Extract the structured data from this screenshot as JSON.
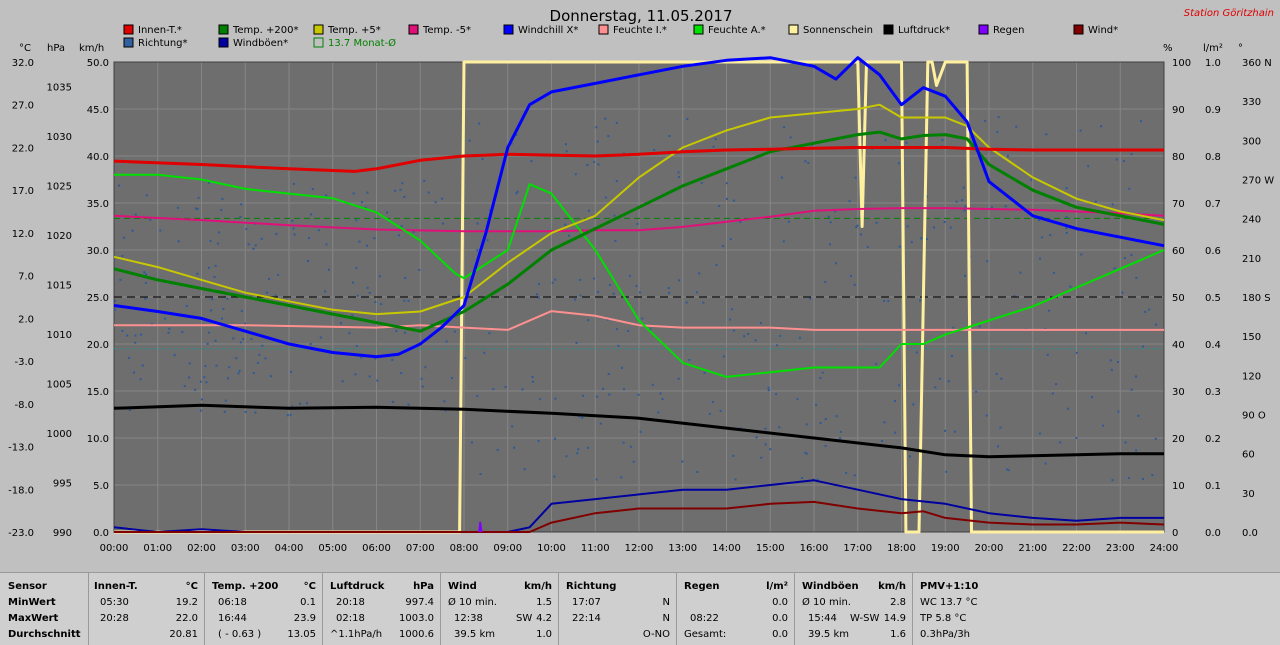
{
  "title": "Donnerstag, 11.05.2017",
  "station": "Station Göritzhain",
  "unit_labels": {
    "c": "°C",
    "hpa": "hPa",
    "kmh": "km/h",
    "pct": "%",
    "rain": "l/m²",
    "deg": "°"
  },
  "legend": [
    {
      "label": "Innen-T.*",
      "color": "#e00000"
    },
    {
      "label": "Temp. +200*",
      "color": "#008000"
    },
    {
      "label": "Temp. +5*",
      "color": "#c8c800"
    },
    {
      "label": "Temp. -5*",
      "color": "#e0107a"
    },
    {
      "label": "Windchill X*",
      "color": "#0000ff"
    },
    {
      "label": "Feuchte I.*",
      "color": "#ff9090"
    },
    {
      "label": "Feuchte A.*",
      "color": "#00e000"
    },
    {
      "label": "Sonnenschein",
      "color": "#fff0a0"
    },
    {
      "label": "Luftdruck*",
      "color": "#000000"
    },
    {
      "label": "Regen",
      "color": "#8000ff"
    },
    {
      "label": "Wind*",
      "color": "#800000"
    },
    {
      "label": "Richtung*",
      "color": "#3060a0"
    },
    {
      "label": "Windböen*",
      "color": "#0000a0"
    },
    {
      "label": "13.7 Monat-Ø",
      "color": "#008000"
    }
  ],
  "chart_data": {
    "type": "line",
    "title": "Donnerstag, 11.05.2017",
    "x_ticks": [
      "00:00",
      "01:00",
      "02:00",
      "03:00",
      "04:00",
      "05:00",
      "06:00",
      "07:00",
      "08:00",
      "09:00",
      "10:00",
      "11:00",
      "12:00",
      "13:00",
      "14:00",
      "15:00",
      "16:00",
      "17:00",
      "18:00",
      "19:00",
      "20:00",
      "21:00",
      "22:00",
      "23:00",
      "24:00"
    ],
    "axes": {
      "temp_c": {
        "ticks": [
          "32.0",
          "27.0",
          "22.0",
          "17.0",
          "12.0",
          "7.0",
          "2.0",
          "-3.0",
          "-8.0",
          "-13.0",
          "-18.0",
          "-23.0"
        ],
        "range": [
          -23,
          32
        ]
      },
      "pressure_hpa": {
        "ticks": [
          "1035",
          "1030",
          "1025",
          "1020",
          "1015",
          "1010",
          "1005",
          "1000",
          "995",
          "990"
        ],
        "range": [
          990,
          1037.5
        ]
      },
      "wind_kmh": {
        "ticks": [
          "50.0",
          "45.0",
          "40.0",
          "35.0",
          "30.0",
          "25.0",
          "20.0",
          "15.0",
          "10.0",
          "5.0",
          "0.0"
        ],
        "range": [
          0,
          50
        ]
      },
      "humidity_pct": {
        "ticks": [
          "100",
          "90",
          "80",
          "70",
          "60",
          "50",
          "40",
          "30",
          "20",
          "10",
          "0"
        ],
        "range": [
          0,
          100
        ]
      },
      "rain_lm2": {
        "ticks": [
          "1.0",
          "0.9",
          "0.8",
          "0.7",
          "0.6",
          "0.5",
          "0.4",
          "0.3",
          "0.2",
          "0.1",
          "0.0"
        ],
        "range": [
          0,
          1
        ]
      },
      "direction_deg": {
        "ticks": [
          "360 N",
          "330",
          "300",
          "270 W",
          "240",
          "210",
          "180 S",
          "150",
          "120",
          "90 O",
          "60",
          "30",
          "0.0"
        ],
        "range": [
          0,
          360
        ]
      }
    },
    "series": [
      {
        "name": "Innen-T.*",
        "axis": "temp_c",
        "x": [
          0,
          2,
          4,
          5.5,
          6,
          7,
          8,
          9,
          10,
          11,
          12,
          13,
          14,
          15,
          16,
          17,
          18,
          19,
          20,
          21,
          22,
          23,
          24
        ],
        "values": [
          20.4,
          20.0,
          19.5,
          19.2,
          19.5,
          20.5,
          21.0,
          21.2,
          21.1,
          21.0,
          21.2,
          21.5,
          21.7,
          21.8,
          21.9,
          22.0,
          22.0,
          22.0,
          21.8,
          21.7,
          21.7,
          21.7,
          21.7
        ]
      },
      {
        "name": "Temp. +200*",
        "axis": "temp_c",
        "x": [
          0,
          1,
          2,
          3,
          4,
          5,
          6,
          7,
          8,
          9,
          10,
          11,
          12,
          13,
          14,
          15,
          16,
          16.5,
          17,
          17.5,
          18,
          18.5,
          19,
          19.5,
          20,
          21,
          22,
          23,
          24
        ],
        "values": [
          7.8,
          6.5,
          5.5,
          4.5,
          3.5,
          2.5,
          1.5,
          0.5,
          2.8,
          6.0,
          10.0,
          12.5,
          15.0,
          17.5,
          19.5,
          21.5,
          22.5,
          23.0,
          23.5,
          23.8,
          23.0,
          23.4,
          23.5,
          23.0,
          20.0,
          17.0,
          15.0,
          14.0,
          13.0
        ]
      },
      {
        "name": "Temp. +5*",
        "axis": "temp_c",
        "x": [
          0,
          1,
          2,
          3,
          4,
          5,
          6,
          7,
          8,
          9,
          10,
          11,
          12,
          13,
          14,
          15,
          16,
          17,
          17.5,
          18,
          18.5,
          19,
          19.5,
          20,
          21,
          22,
          23,
          24
        ],
        "values": [
          9.2,
          8.0,
          6.5,
          5.0,
          4.0,
          3.0,
          2.5,
          2.8,
          4.5,
          8.5,
          12.0,
          14.0,
          18.5,
          22.0,
          24.0,
          25.5,
          26.0,
          26.5,
          27.0,
          25.5,
          25.5,
          25.5,
          24.5,
          22.0,
          18.5,
          16.0,
          14.5,
          13.5
        ]
      },
      {
        "name": "Temp. -5*",
        "axis": "temp_c",
        "x": [
          0,
          2,
          4,
          6,
          8,
          9,
          10,
          11,
          12,
          13,
          14,
          15,
          16,
          17,
          18,
          19,
          20,
          21,
          22,
          23,
          24
        ],
        "values": [
          14.0,
          13.5,
          12.9,
          12.4,
          12.2,
          12.2,
          12.2,
          12.3,
          12.3,
          12.7,
          13.3,
          13.9,
          14.6,
          14.8,
          14.9,
          14.9,
          14.8,
          14.7,
          14.5,
          14.3,
          14.0
        ]
      },
      {
        "name": "Windchill X*",
        "axis": "temp_c",
        "x": [
          0,
          1,
          2,
          3,
          4,
          5,
          6,
          6.5,
          7,
          7.5,
          8,
          8.5,
          9,
          9.5,
          10,
          11,
          12,
          13,
          14,
          15,
          16,
          16.5,
          17,
          17.5,
          18,
          18.5,
          19,
          19.5,
          20,
          21,
          22,
          23,
          24
        ],
        "values": [
          3.5,
          2.8,
          2.0,
          0.5,
          -1.0,
          -2.0,
          -2.5,
          -2.2,
          -1.0,
          1.0,
          3.5,
          12.0,
          22.0,
          27.0,
          28.5,
          29.5,
          30.5,
          31.5,
          32.2,
          32.5,
          31.5,
          30.0,
          32.5,
          30.5,
          27.0,
          29.0,
          28.0,
          25.0,
          18.0,
          14.0,
          12.5,
          11.5,
          10.5
        ]
      },
      {
        "name": "Feuchte I.*",
        "axis": "humidity_pct",
        "x": [
          0,
          3,
          6,
          7,
          8,
          9,
          10,
          11,
          12,
          13,
          14,
          15,
          16,
          17,
          18,
          19,
          20,
          21,
          22,
          23,
          24
        ],
        "values": [
          44,
          44,
          43.5,
          44,
          43.5,
          43,
          47,
          46,
          44,
          43.5,
          43.5,
          43.5,
          43,
          43,
          43,
          43,
          43,
          43,
          43,
          43,
          43
        ]
      },
      {
        "name": "Feuchte A.*",
        "axis": "humidity_pct",
        "x": [
          0,
          1,
          2,
          3,
          4,
          5,
          6,
          7,
          7.8,
          8,
          9,
          9.5,
          10,
          11,
          12,
          13,
          14,
          15,
          16,
          17,
          17.5,
          18,
          18.5,
          19,
          20,
          21,
          22,
          23,
          24
        ],
        "values": [
          76,
          76,
          75,
          73,
          72,
          71,
          68,
          62,
          55,
          54,
          60,
          74,
          72,
          60,
          45,
          36,
          33,
          34,
          35,
          35,
          35,
          40,
          40,
          42,
          45,
          48,
          52,
          56,
          60
        ]
      },
      {
        "name": "Luftdruck*",
        "axis": "pressure_hpa",
        "x": [
          0,
          2,
          4,
          6,
          8,
          10,
          12,
          14,
          16,
          18,
          19,
          20,
          21,
          22,
          23,
          24
        ],
        "values": [
          1002.5,
          1002.8,
          1002.5,
          1002.6,
          1002.4,
          1002.0,
          1001.5,
          1000.5,
          999.5,
          998.5,
          997.8,
          997.6,
          997.7,
          997.8,
          997.9,
          997.9
        ]
      },
      {
        "name": "Wind*",
        "axis": "wind_kmh",
        "x": [
          0,
          2,
          4,
          6,
          8,
          9,
          9.5,
          10,
          11,
          12,
          13,
          14,
          15,
          16,
          17,
          18,
          18.5,
          19,
          20,
          21,
          22,
          23,
          24
        ],
        "values": [
          0,
          0,
          0,
          0,
          0,
          0,
          0,
          1.0,
          2.0,
          2.5,
          2.5,
          2.5,
          3.0,
          3.2,
          2.5,
          2.0,
          2.2,
          1.5,
          1.0,
          0.8,
          0.8,
          1.0,
          0.8
        ]
      },
      {
        "name": "Windböen*",
        "axis": "wind_kmh",
        "x": [
          0,
          1,
          2,
          3,
          4,
          5,
          6,
          7,
          8,
          9,
          9.5,
          10,
          11,
          12,
          13,
          14,
          15,
          16,
          17,
          18,
          19,
          20,
          21,
          22,
          23,
          24
        ],
        "values": [
          0.5,
          0,
          0.3,
          0,
          0,
          0,
          0,
          0,
          0,
          0,
          0.5,
          3.0,
          3.5,
          4.0,
          4.5,
          4.5,
          5.0,
          5.5,
          4.5,
          3.5,
          3.0,
          2.0,
          1.5,
          1.2,
          1.5,
          1.5
        ]
      },
      {
        "name": "Sonnenschein",
        "axis": "humidity_pct",
        "x": [
          0,
          7.9,
          8.0,
          17.0,
          17.1,
          17.2,
          17.4,
          17.5,
          18.0,
          18.1,
          18.2,
          18.3,
          18.4,
          18.6,
          18.7,
          18.8,
          19.0,
          19.5,
          19.6,
          20,
          24
        ],
        "values": [
          0,
          0,
          100,
          100,
          65,
          100,
          100,
          100,
          100,
          0,
          0,
          0,
          0,
          100,
          100,
          95,
          100,
          100,
          0,
          0,
          0
        ]
      },
      {
        "name": "Regen",
        "axis": "rain_lm2",
        "x": [
          8.35,
          8.37,
          8.4
        ],
        "values": [
          0,
          0.02,
          0
        ]
      }
    ],
    "reference_lines": [
      {
        "name": "13.7 Monat-Ø",
        "axis": "temp_c",
        "value": 13.7
      },
      {
        "name": "Richtung mean",
        "axis": "direction_deg",
        "value": 180
      }
    ]
  },
  "stats": {
    "sensor": {
      "title": "Sensor",
      "rows": [
        "MinWert",
        "MaxWert",
        "Durchschnitt"
      ]
    },
    "innen": {
      "title": "Innen-T.",
      "unit": "°C",
      "rows": [
        [
          "05:30",
          "19.2"
        ],
        [
          "20:28",
          "22.0"
        ],
        [
          "",
          "20.81"
        ]
      ]
    },
    "temp200": {
      "title": "Temp. +200",
      "unit": "°C",
      "rows": [
        [
          "06:18",
          "0.1"
        ],
        [
          "16:44",
          "23.9"
        ],
        [
          "( - 0.63 )",
          "13.05"
        ]
      ]
    },
    "luftdruck": {
      "title": "Luftdruck",
      "unit": "hPa",
      "rows": [
        [
          "20:18",
          "997.4"
        ],
        [
          "02:18",
          "1003.0"
        ],
        [
          "^1.1hPa/h",
          "1000.6"
        ]
      ]
    },
    "wind": {
      "title": "Wind",
      "unit": "km/h",
      "rows": [
        [
          "Ø 10 min.",
          "",
          "1.5"
        ],
        [
          "12:38",
          "SW",
          "4.2"
        ],
        [
          "39.5 km",
          "",
          "1.0"
        ]
      ]
    },
    "richtung": {
      "title": "Richtung",
      "rows": [
        [
          "17:07",
          "N"
        ],
        [
          "22:14",
          "N"
        ],
        [
          "",
          "O-NO"
        ]
      ]
    },
    "regen": {
      "title": "Regen",
      "unit": "l/m²",
      "rows": [
        [
          "",
          "0.0"
        ],
        [
          "08:22",
          "0.0"
        ],
        [
          "Gesamt:",
          "0.0"
        ]
      ]
    },
    "windboeen": {
      "title": "Windböen",
      "unit": "km/h",
      "rows": [
        [
          "Ø 10 min.",
          "",
          "2.8"
        ],
        [
          "15:44",
          "W-SW",
          "14.9"
        ],
        [
          "39.5 km",
          "",
          "1.6"
        ]
      ]
    },
    "pmv": {
      "title": "PMV+1:10",
      "rows": [
        "WC 13.7 °C",
        "TP 5.8 °C",
        "0.3hPa/3h"
      ]
    }
  }
}
